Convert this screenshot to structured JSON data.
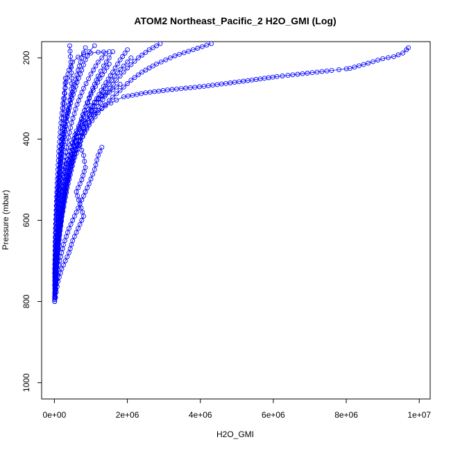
{
  "chart_data": {
    "type": "scatter",
    "title": "ATOM2 Northeast_Pacific_2 H2O_GMI (Log)",
    "xlabel": "H2O_GMI",
    "ylabel": "Pressure (mbar)",
    "xlim": [
      -350000,
      10300000
    ],
    "ylim": [
      1040,
      160
    ],
    "y_reversed": true,
    "x_ticks": [
      0,
      2000000,
      4000000,
      6000000,
      8000000,
      10000000
    ],
    "x_tick_labels": [
      "0e+00",
      "2e+06",
      "4e+06",
      "6e+06",
      "8e+06",
      "1e+07"
    ],
    "y_ticks": [
      200,
      400,
      600,
      800,
      1000
    ],
    "y_tick_labels": [
      "200",
      "400",
      "600",
      "800",
      "1000"
    ],
    "marker": "open-circle",
    "color": "#0000ff",
    "grid": false,
    "series": [
      {
        "values": [
          [
            9700000,
            175
          ],
          [
            9650000,
            180
          ],
          [
            9550000,
            188
          ],
          [
            9300000,
            197
          ],
          [
            9000000,
            202
          ],
          [
            8600000,
            213
          ],
          [
            8100000,
            226
          ],
          [
            8000000,
            227
          ],
          [
            7800000,
            229
          ],
          [
            7600000,
            231
          ],
          [
            7200000,
            235
          ],
          [
            6800000,
            239
          ],
          [
            6400000,
            243
          ],
          [
            6100000,
            246
          ],
          [
            5300000,
            256
          ],
          [
            4100000,
            270
          ],
          [
            3100000,
            279
          ],
          [
            2500000,
            286
          ],
          [
            1900000,
            296
          ],
          [
            1700000,
            304
          ],
          [
            1400000,
            318
          ],
          [
            1100000,
            335
          ],
          [
            850000,
            356
          ],
          [
            600000,
            387
          ],
          [
            450000,
            420
          ],
          [
            300000,
            470
          ],
          [
            180000,
            540
          ],
          [
            100000,
            620
          ],
          [
            50000,
            700
          ],
          [
            20000,
            770
          ],
          [
            5000,
            800
          ]
        ]
      },
      {
        "values": [
          [
            4300000,
            165
          ],
          [
            3800000,
            180
          ],
          [
            3300000,
            195
          ],
          [
            2800000,
            215
          ],
          [
            2400000,
            235
          ],
          [
            2100000,
            255
          ],
          [
            1800000,
            280
          ],
          [
            1500000,
            305
          ],
          [
            1200000,
            335
          ],
          [
            950000,
            365
          ],
          [
            700000,
            405
          ],
          [
            500000,
            450
          ],
          [
            330000,
            510
          ],
          [
            200000,
            580
          ],
          [
            110000,
            650
          ],
          [
            50000,
            720
          ],
          [
            15000,
            790
          ]
        ]
      },
      {
        "values": [
          [
            2900000,
            165
          ],
          [
            2600000,
            180
          ],
          [
            2300000,
            200
          ],
          [
            2000000,
            225
          ],
          [
            1700000,
            255
          ],
          [
            1450000,
            285
          ],
          [
            1200000,
            320
          ],
          [
            950000,
            360
          ],
          [
            720000,
            405
          ],
          [
            520000,
            455
          ],
          [
            350000,
            520
          ],
          [
            210000,
            590
          ],
          [
            110000,
            660
          ],
          [
            40000,
            740
          ],
          [
            10000,
            795
          ]
        ]
      },
      {
        "values": [
          [
            1600000,
            185
          ],
          [
            1500000,
            200
          ],
          [
            1350000,
            220
          ],
          [
            1200000,
            245
          ],
          [
            1050000,
            275
          ],
          [
            900000,
            310
          ],
          [
            750000,
            350
          ],
          [
            600000,
            395
          ],
          [
            450000,
            450
          ],
          [
            300000,
            520
          ],
          [
            180000,
            600
          ],
          [
            80000,
            690
          ],
          [
            20000,
            780
          ]
        ]
      },
      {
        "values": [
          [
            2000000,
            180
          ],
          [
            1800000,
            205
          ],
          [
            1600000,
            235
          ],
          [
            1350000,
            270
          ],
          [
            1100000,
            310
          ],
          [
            850000,
            360
          ],
          [
            620000,
            415
          ],
          [
            420000,
            480
          ],
          [
            250000,
            560
          ],
          [
            120000,
            640
          ],
          [
            40000,
            730
          ],
          [
            8000,
            800
          ]
        ]
      },
      {
        "values": [
          [
            1500000,
            215
          ],
          [
            1250000,
            250
          ],
          [
            1000000,
            290
          ],
          [
            780000,
            340
          ],
          [
            560000,
            405
          ],
          [
            380000,
            470
          ],
          [
            230000,
            550
          ],
          [
            100000,
            640
          ],
          [
            30000,
            730
          ],
          [
            5000,
            795
          ]
        ]
      },
      {
        "values": [
          [
            2100000,
            200
          ],
          [
            1900000,
            220
          ],
          [
            1650000,
            245
          ],
          [
            1400000,
            275
          ],
          [
            1150000,
            310
          ],
          [
            900000,
            350
          ],
          [
            700000,
            395
          ],
          [
            520000,
            445
          ],
          [
            360000,
            505
          ],
          [
            220000,
            575
          ],
          [
            100000,
            660
          ],
          [
            30000,
            750
          ]
        ]
      },
      {
        "values": [
          [
            1800000,
            265
          ],
          [
            1500000,
            285
          ],
          [
            1200000,
            300
          ],
          [
            1000000,
            318
          ],
          [
            800000,
            345
          ],
          [
            600000,
            380
          ],
          [
            450000,
            420
          ],
          [
            320000,
            470
          ],
          [
            200000,
            530
          ],
          [
            100000,
            610
          ],
          [
            40000,
            700
          ],
          [
            10000,
            790
          ]
        ]
      },
      {
        "values": [
          [
            1400000,
            190
          ],
          [
            1200000,
            210
          ],
          [
            1000000,
            240
          ],
          [
            800000,
            275
          ],
          [
            620000,
            315
          ],
          [
            470000,
            360
          ],
          [
            330000,
            420
          ],
          [
            220000,
            490
          ],
          [
            130000,
            570
          ],
          [
            60000,
            650
          ],
          [
            20000,
            740
          ]
        ]
      },
      {
        "values": [
          [
            700000,
            415
          ],
          [
            800000,
            440
          ],
          [
            850000,
            470
          ],
          [
            750000,
            500
          ],
          [
            600000,
            530
          ],
          [
            700000,
            560
          ],
          [
            800000,
            590
          ],
          [
            650000,
            620
          ],
          [
            500000,
            650
          ],
          [
            400000,
            680
          ],
          [
            300000,
            700
          ],
          [
            200000,
            720
          ],
          [
            100000,
            750
          ],
          [
            30000,
            790
          ]
        ]
      },
      {
        "values": [
          [
            1300000,
            420
          ],
          [
            1200000,
            440
          ],
          [
            1100000,
            475
          ],
          [
            950000,
            510
          ],
          [
            800000,
            540
          ],
          [
            600000,
            580
          ],
          [
            400000,
            620
          ],
          [
            250000,
            660
          ],
          [
            120000,
            710
          ],
          [
            40000,
            770
          ]
        ]
      },
      {
        "values": [
          [
            420000,
            170
          ],
          [
            450000,
            210
          ],
          [
            480000,
            250
          ],
          [
            450000,
            290
          ],
          [
            380000,
            330
          ],
          [
            300000,
            370
          ],
          [
            220000,
            420
          ],
          [
            150000,
            480
          ],
          [
            90000,
            550
          ],
          [
            40000,
            640
          ],
          [
            10000,
            740
          ]
        ]
      },
      {
        "values": [
          [
            850000,
            175
          ],
          [
            750000,
            200
          ],
          [
            650000,
            230
          ],
          [
            550000,
            265
          ],
          [
            430000,
            305
          ],
          [
            320000,
            350
          ],
          [
            230000,
            400
          ],
          [
            150000,
            460
          ],
          [
            80000,
            530
          ],
          [
            35000,
            620
          ],
          [
            10000,
            720
          ]
        ]
      },
      {
        "values": [
          [
            1100000,
            170
          ],
          [
            950000,
            185
          ],
          [
            850000,
            205
          ],
          [
            750000,
            230
          ],
          [
            620000,
            260
          ],
          [
            480000,
            300
          ],
          [
            350000,
            345
          ],
          [
            240000,
            400
          ],
          [
            150000,
            470
          ],
          [
            80000,
            550
          ],
          [
            30000,
            640
          ],
          [
            5000,
            760
          ]
        ]
      },
      {
        "values": [
          [
            300000,
            250
          ],
          [
            280000,
            300
          ],
          [
            250000,
            350
          ],
          [
            210000,
            400
          ],
          [
            170000,
            450
          ],
          [
            130000,
            500
          ],
          [
            90000,
            560
          ],
          [
            50000,
            630
          ],
          [
            20000,
            700
          ],
          [
            5000,
            790
          ]
        ]
      },
      {
        "values": [
          [
            1500000,
            185
          ],
          [
            1200000,
            186
          ],
          [
            1000000,
            188
          ],
          [
            800000,
            192
          ],
          [
            650000,
            198
          ],
          [
            500000,
            210
          ],
          [
            400000,
            230
          ],
          [
            320000,
            260
          ],
          [
            250000,
            300
          ],
          [
            180000,
            360
          ],
          [
            120000,
            430
          ],
          [
            70000,
            520
          ],
          [
            30000,
            620
          ],
          [
            8000,
            730
          ]
        ]
      }
    ]
  }
}
